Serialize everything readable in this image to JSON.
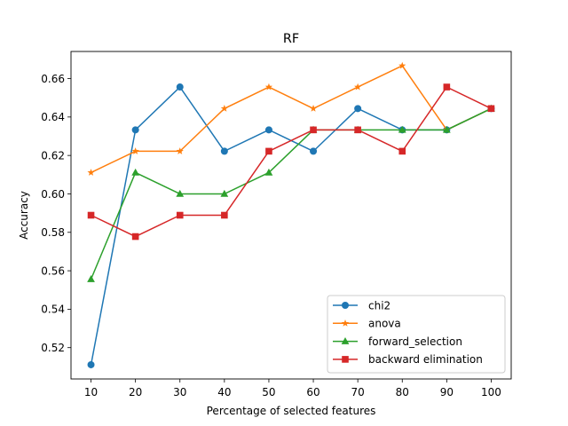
{
  "chart_data": {
    "type": "line",
    "title": "RF",
    "xlabel": "Percentage of selected features",
    "ylabel": "Accuracy",
    "x": [
      10,
      20,
      30,
      40,
      50,
      60,
      70,
      80,
      90,
      100
    ],
    "xticks": [
      "10",
      "20",
      "30",
      "40",
      "50",
      "60",
      "70",
      "80",
      "90",
      "100"
    ],
    "yticks": [
      "0.52",
      "0.54",
      "0.56",
      "0.58",
      "0.60",
      "0.62",
      "0.64",
      "0.66"
    ],
    "ytick_values": [
      0.52,
      0.54,
      0.56,
      0.58,
      0.6,
      0.62,
      0.64,
      0.66
    ],
    "xlim": [
      5.5,
      104.5
    ],
    "ylim": [
      0.5037,
      0.6741
    ],
    "grid": false,
    "legend_position": "lower-right",
    "series": [
      {
        "name": "chi2",
        "color": "#1f77b4",
        "marker": "circle",
        "values": [
          0.5111,
          0.6333,
          0.6556,
          0.6222,
          0.6333,
          0.6222,
          0.6444,
          0.6333,
          0.6333,
          0.6444
        ]
      },
      {
        "name": "anova",
        "color": "#ff7f0e",
        "marker": "star",
        "values": [
          0.6111,
          0.6222,
          0.6222,
          0.6444,
          0.6556,
          0.6444,
          0.6556,
          0.6667,
          0.6333,
          0.6444
        ]
      },
      {
        "name": "forward_selection",
        "color": "#2ca02c",
        "marker": "triangle",
        "values": [
          0.5556,
          0.6111,
          0.6,
          0.6,
          0.6111,
          0.6333,
          0.6333,
          0.6333,
          0.6333,
          0.6444
        ]
      },
      {
        "name": "backward elimination",
        "color": "#d62728",
        "marker": "square",
        "values": [
          0.5889,
          0.5778,
          0.5889,
          0.5889,
          0.6222,
          0.6333,
          0.6333,
          0.6222,
          0.6556,
          0.6444
        ]
      }
    ]
  }
}
